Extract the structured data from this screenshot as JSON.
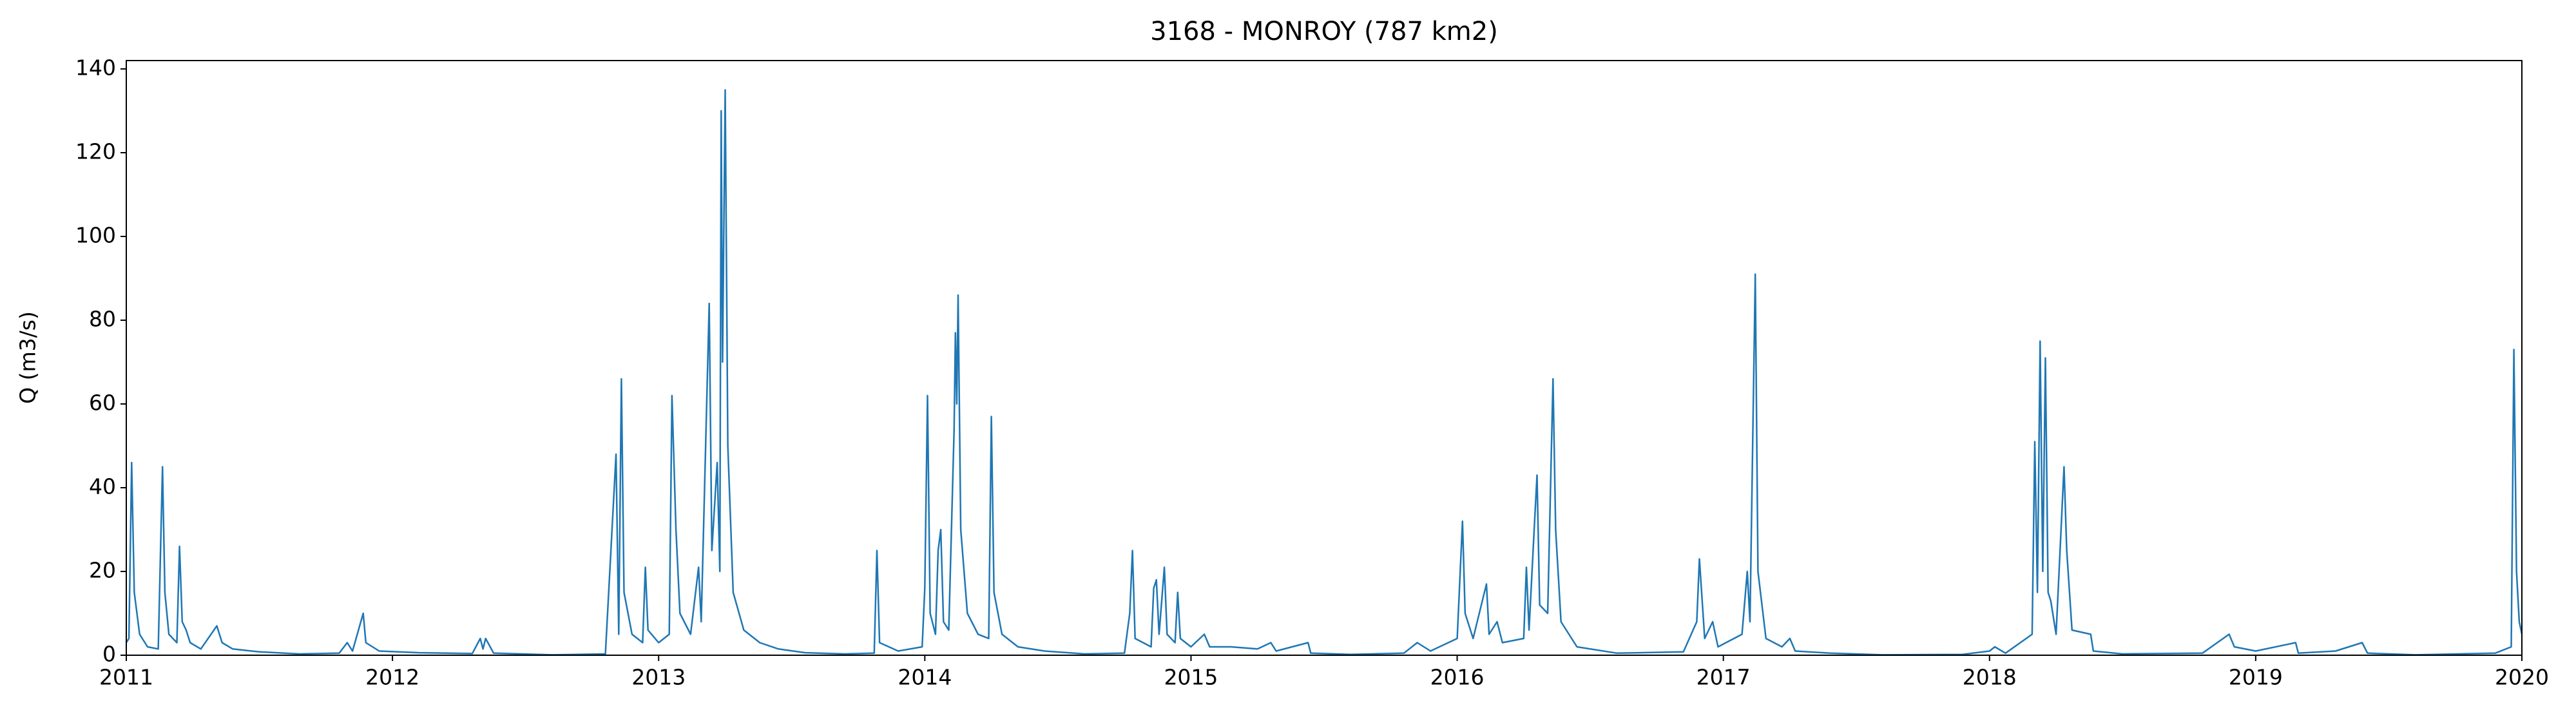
{
  "chart_data": {
    "type": "line",
    "title": "3168 - MONROY (787 km2)",
    "ylabel": "Q (m3/s)",
    "color": "#1f77b4",
    "xlim": [
      2011,
      2020
    ],
    "xticks": [
      2011,
      2012,
      2013,
      2014,
      2015,
      2016,
      2017,
      2018,
      2019,
      2020
    ],
    "ylim": [
      0,
      142
    ],
    "yticks": [
      0,
      20,
      40,
      60,
      80,
      100,
      120,
      140
    ],
    "x": [
      2011.0,
      2011.01,
      2011.02,
      2011.03,
      2011.05,
      2011.08,
      2011.12,
      2011.136,
      2011.145,
      2011.16,
      2011.19,
      2011.2,
      2011.21,
      2011.225,
      2011.24,
      2011.28,
      2011.34,
      2011.36,
      2011.4,
      2011.5,
      2011.65,
      2011.8,
      2011.83,
      2011.85,
      2011.89,
      2011.9,
      2011.95,
      2012.1,
      2012.3,
      2012.33,
      2012.34,
      2012.35,
      2012.38,
      2012.6,
      2012.8,
      2012.84,
      2012.85,
      2012.86,
      2012.87,
      2012.9,
      2012.94,
      2012.95,
      2012.96,
      2013.0,
      2013.04,
      2013.05,
      2013.065,
      2013.08,
      2013.12,
      2013.15,
      2013.16,
      2013.19,
      2013.2,
      2013.22,
      2013.23,
      2013.235,
      2013.24,
      2013.25,
      2013.26,
      2013.28,
      2013.32,
      2013.38,
      2013.45,
      2013.55,
      2013.7,
      2013.81,
      2013.82,
      2013.83,
      2013.9,
      2013.99,
      2014.0,
      2014.01,
      2014.02,
      2014.04,
      2014.05,
      2014.06,
      2014.07,
      2014.09,
      2014.11,
      2014.115,
      2014.12,
      2014.125,
      2014.135,
      2014.16,
      2014.2,
      2014.24,
      2014.25,
      2014.26,
      2014.29,
      2014.35,
      2014.45,
      2014.6,
      2014.75,
      2014.77,
      2014.78,
      2014.79,
      2014.85,
      2014.86,
      2014.87,
      2014.88,
      2014.9,
      2014.91,
      2014.94,
      2014.95,
      2014.96,
      2015.0,
      2015.05,
      2015.07,
      2015.15,
      2015.25,
      2015.3,
      2015.32,
      2015.44,
      2015.45,
      2015.6,
      2015.8,
      2015.85,
      2015.9,
      2016.0,
      2016.02,
      2016.03,
      2016.06,
      2016.11,
      2016.12,
      2016.15,
      2016.17,
      2016.25,
      2016.26,
      2016.27,
      2016.29,
      2016.3,
      2016.31,
      2016.34,
      2016.36,
      2016.37,
      2016.39,
      2016.45,
      2016.6,
      2016.85,
      2016.9,
      2016.91,
      2016.93,
      2016.96,
      2016.98,
      2017.07,
      2017.09,
      2017.1,
      2017.12,
      2017.13,
      2017.16,
      2017.22,
      2017.25,
      2017.27,
      2017.4,
      2017.6,
      2017.9,
      2018.0,
      2018.02,
      2018.06,
      2018.16,
      2018.17,
      2018.18,
      2018.19,
      2018.2,
      2018.21,
      2018.22,
      2018.23,
      2018.25,
      2018.28,
      2018.29,
      2018.31,
      2018.38,
      2018.39,
      2018.5,
      2018.8,
      2018.9,
      2018.92,
      2019.0,
      2019.15,
      2019.16,
      2019.3,
      2019.4,
      2019.42,
      2019.6,
      2019.9,
      2019.96,
      2019.97,
      2019.98,
      2019.99,
      2020.0
    ],
    "values": [
      3,
      4,
      46,
      15,
      5,
      2,
      1.5,
      45,
      15,
      5,
      3,
      26,
      8,
      6,
      3,
      1.5,
      7,
      3,
      1.5,
      0.8,
      0.3,
      0.5,
      3,
      1,
      10,
      3,
      1,
      0.6,
      0.4,
      4,
      1.5,
      4,
      0.5,
      0.1,
      0.3,
      48,
      5,
      66,
      15,
      5,
      3,
      21,
      6,
      3,
      5,
      62,
      30,
      10,
      5,
      21,
      8,
      84,
      25,
      46,
      20,
      130,
      70,
      135,
      50,
      15,
      6,
      3,
      1.5,
      0.6,
      0.3,
      0.5,
      25,
      3,
      1,
      2,
      16,
      62,
      10,
      5,
      25,
      30,
      8,
      6,
      54,
      77,
      60,
      86,
      30,
      10,
      5,
      4,
      57,
      15,
      5,
      2,
      1,
      0.3,
      0.5,
      10,
      25,
      4,
      2,
      16,
      18,
      5,
      21,
      5,
      3,
      15,
      4,
      2,
      5,
      2,
      2,
      1.5,
      3,
      1,
      3,
      0.5,
      0.2,
      0.5,
      3,
      1,
      4,
      32,
      10,
      4,
      17,
      5,
      8,
      3,
      4,
      21,
      6,
      31,
      43,
      12,
      10,
      66,
      30,
      8,
      2,
      0.5,
      0.8,
      8,
      23,
      4,
      8,
      2,
      5,
      20,
      8,
      91,
      20,
      4,
      2,
      4,
      1,
      0.5,
      0.1,
      0.2,
      1,
      2,
      0.5,
      5,
      51,
      15,
      75,
      20,
      71,
      15,
      13,
      5,
      45,
      25,
      6,
      5,
      1,
      0.3,
      0.5,
      5,
      2,
      1,
      3,
      0.5,
      1,
      3,
      0.5,
      0.1,
      0.5,
      2,
      73,
      20,
      8,
      5
    ]
  }
}
